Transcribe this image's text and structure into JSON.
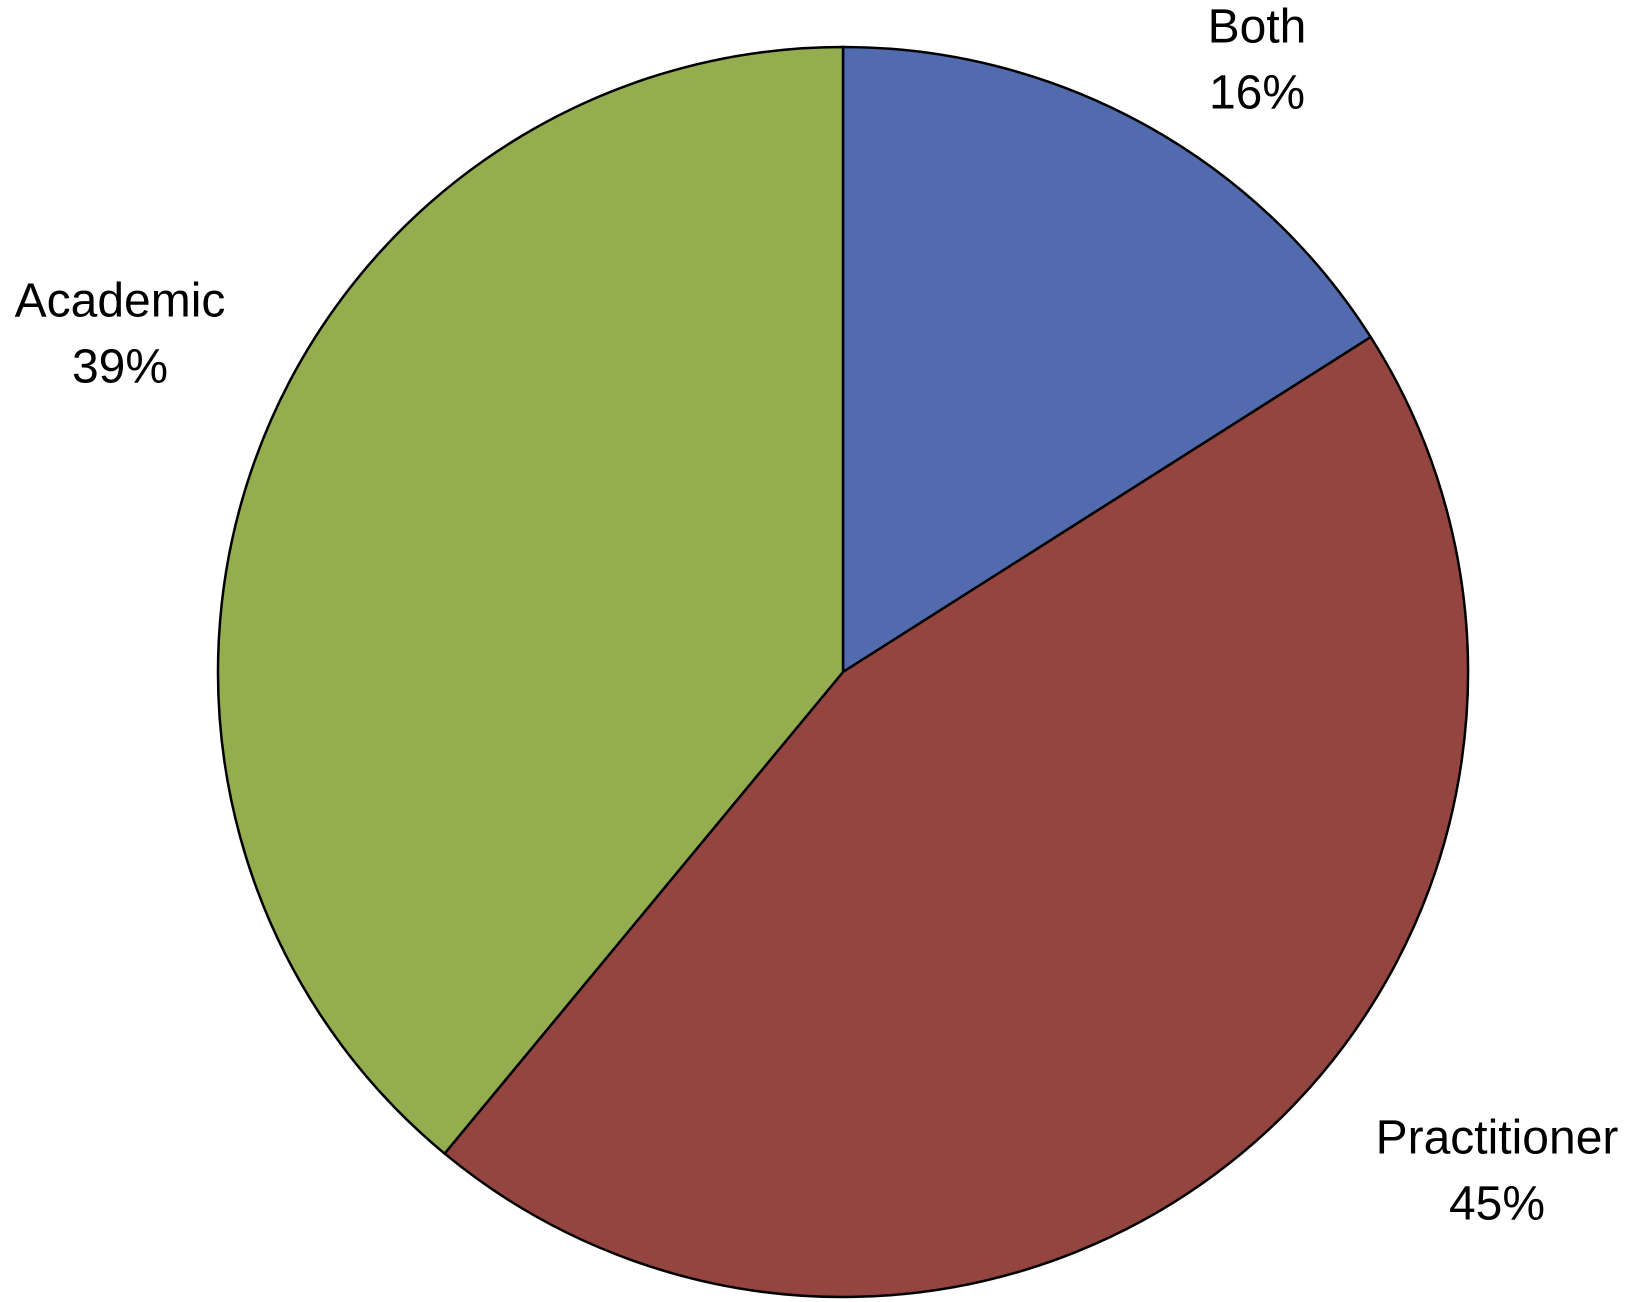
{
  "chart_data": {
    "type": "pie",
    "categories": [
      "Both",
      "Practitioner",
      "Academic"
    ],
    "values": [
      16,
      45,
      39
    ],
    "value_labels": [
      "16%",
      "45%",
      "39%"
    ],
    "colors": [
      "#516bae",
      "#954540",
      "#93ad4f"
    ]
  }
}
